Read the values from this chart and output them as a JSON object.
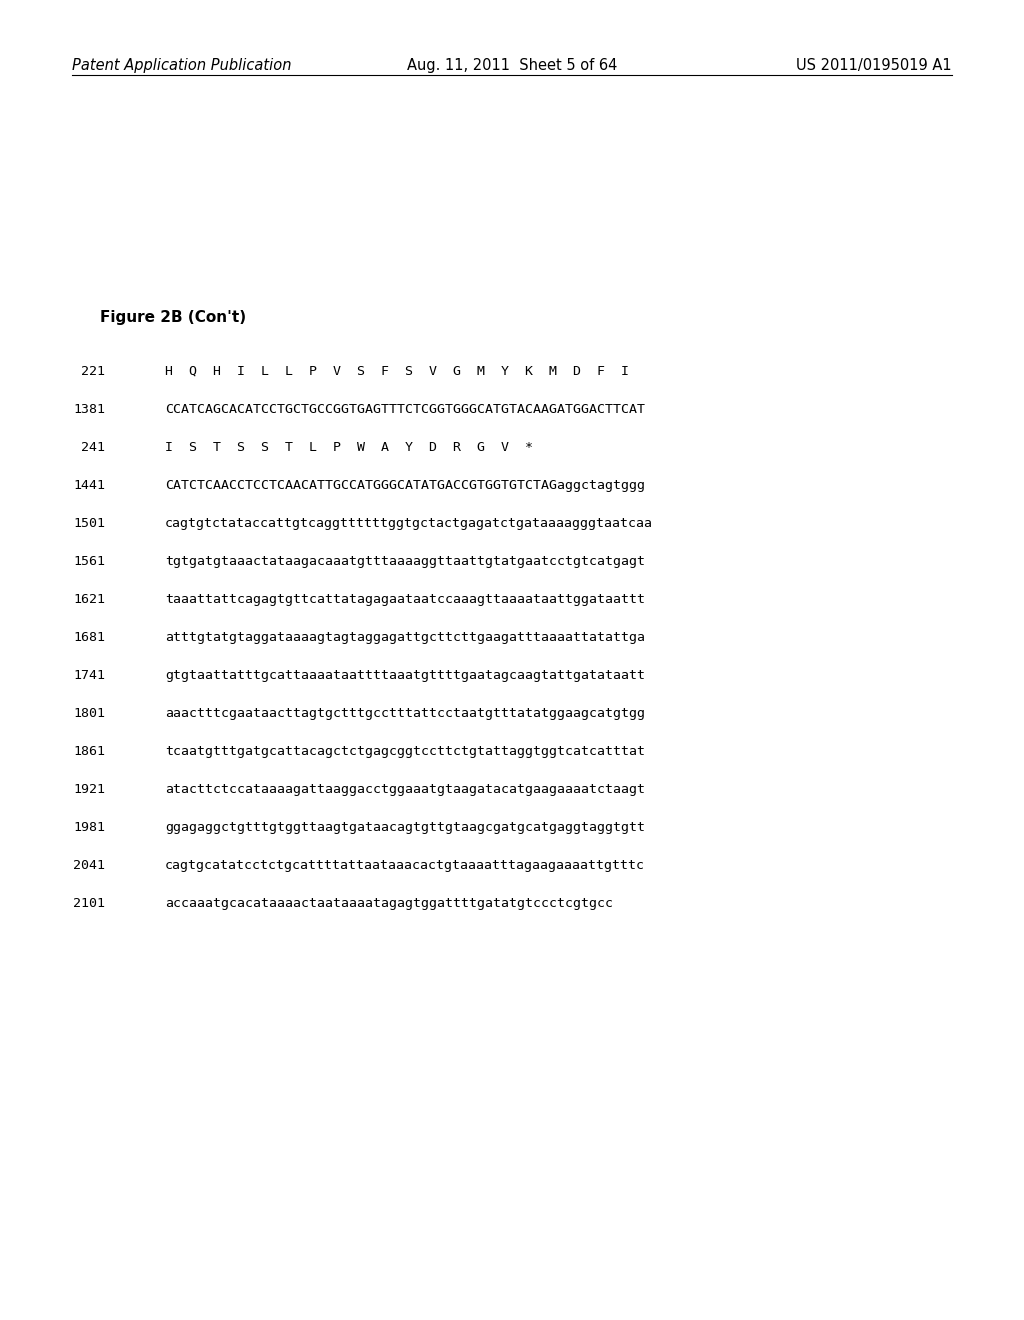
{
  "header_left": "Patent Application Publication",
  "header_mid": "Aug. 11, 2011  Sheet 5 of 64",
  "header_right": "US 2011/0195019 A1",
  "figure_label": "Figure 2B (Con't)",
  "lines": [
    {
      "num": "221",
      "text": "H  Q  H  I  L  L  P  V  S  F  S  V  G  M  Y  K  M  D  F  I",
      "style": "mono"
    },
    {
      "num": "1381",
      "text": "CCATCAGCACATCCTGCTGCCGGTGAGTTTCTCGGTGGGCATGTACAAGATGGACTTCAT",
      "style": "mono"
    },
    {
      "num": "241",
      "text": "I  S  T  S  S  T  L  P  W  A  Y  D  R  G  V  *",
      "style": "mono"
    },
    {
      "num": "1441",
      "text": "CATCTCAACCTCCTCAACATTGCCATGGGCATATGACCGTGGTGTCTAGaggctagtggg",
      "style": "mono"
    },
    {
      "num": "1501",
      "text": "cagtgtctataccattgtcaggttttttggtgctactgagatctgataaaagggtaatcaa",
      "style": "mono"
    },
    {
      "num": "1561",
      "text": "tgtgatgtaaactataagacaaatgtttaaaaggttaattgtatgaatcctgtcatgagt",
      "style": "mono"
    },
    {
      "num": "1621",
      "text": "taaattattcagagtgttcattatagagaataatccaaagttaaaataattggataattt",
      "style": "mono"
    },
    {
      "num": "1681",
      "text": "atttgtatgtaggataaaagtagtaggagattgcttcttgaagatttaaaattatattga",
      "style": "mono"
    },
    {
      "num": "1741",
      "text": "gtgtaattatttgcattaaaataattttaaatgttttgaatagcaagtattgatataatt",
      "style": "mono"
    },
    {
      "num": "1801",
      "text": "aaactttcgaataacttagtgctttgcctttattcctaatgtttatatggaagcatgtgg",
      "style": "mono"
    },
    {
      "num": "1861",
      "text": "tcaatgtttgatgcattacagctctgagcggtccttctgtattaggtggtcatcatttat",
      "style": "mono"
    },
    {
      "num": "1921",
      "text": "atacttctccataaaagattaaggacctggaaatgtaagatacatgaagaaaatctaagt",
      "style": "mono"
    },
    {
      "num": "1981",
      "text": "ggagaggctgtttgtggttaagtgataacagtgttgtaagcgatgcatgaggtaggtgtt",
      "style": "mono"
    },
    {
      "num": "2041",
      "text": "cagtgcatatcctctgcattttattaataaacactgtaaaatttagaagaaaattgtttc",
      "style": "mono"
    },
    {
      "num": "2101",
      "text": "accaaatgcacataaaactaataaaatagagtggattttgatatgtccctcgtgcc",
      "style": "mono"
    }
  ],
  "background_color": "#ffffff",
  "text_color": "#000000",
  "header_fontsize": 10.5,
  "figure_label_fontsize": 11,
  "seq_fontsize": 9.5
}
